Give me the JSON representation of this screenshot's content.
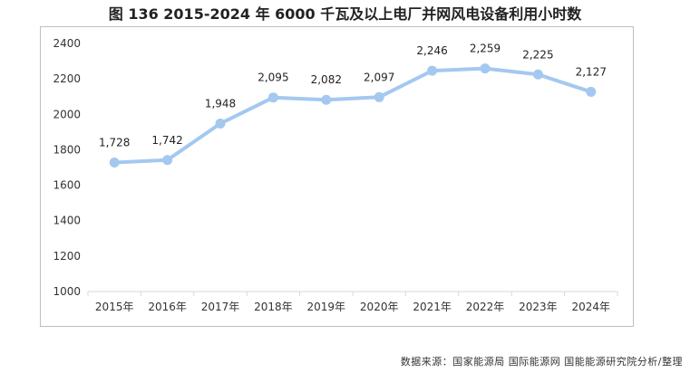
{
  "title": "图 136 2015-2024 年 6000 千瓦及以上电厂并网风电设备利用小时数",
  "source": "数据来源：国家能源局 国际能源网 国能能源研究院分析/整理",
  "colors": {
    "line": "#a4c8f0",
    "text": "#222222",
    "frame": "#bfbfbf"
  },
  "chart_data": {
    "type": "line",
    "categories": [
      "2015年",
      "2016年",
      "2017年",
      "2018年",
      "2019年",
      "2020年",
      "2021年",
      "2022年",
      "2023年",
      "2024年"
    ],
    "series": [
      {
        "values": [
          1728,
          1742,
          1948,
          2095,
          2082,
          2097,
          2246,
          2259,
          2225,
          2127
        ],
        "labels": [
          "1,728",
          "1,742",
          "1,948",
          "2,095",
          "2,082",
          "2,097",
          "2,246",
          "2,259",
          "2,225",
          "2,127"
        ]
      }
    ],
    "yticks": [
      "1000",
      "1200",
      "1400",
      "1600",
      "1800",
      "2000",
      "2200",
      "2400"
    ],
    "ylim": [
      1000,
      2400
    ],
    "grid": false,
    "legend": "none"
  }
}
